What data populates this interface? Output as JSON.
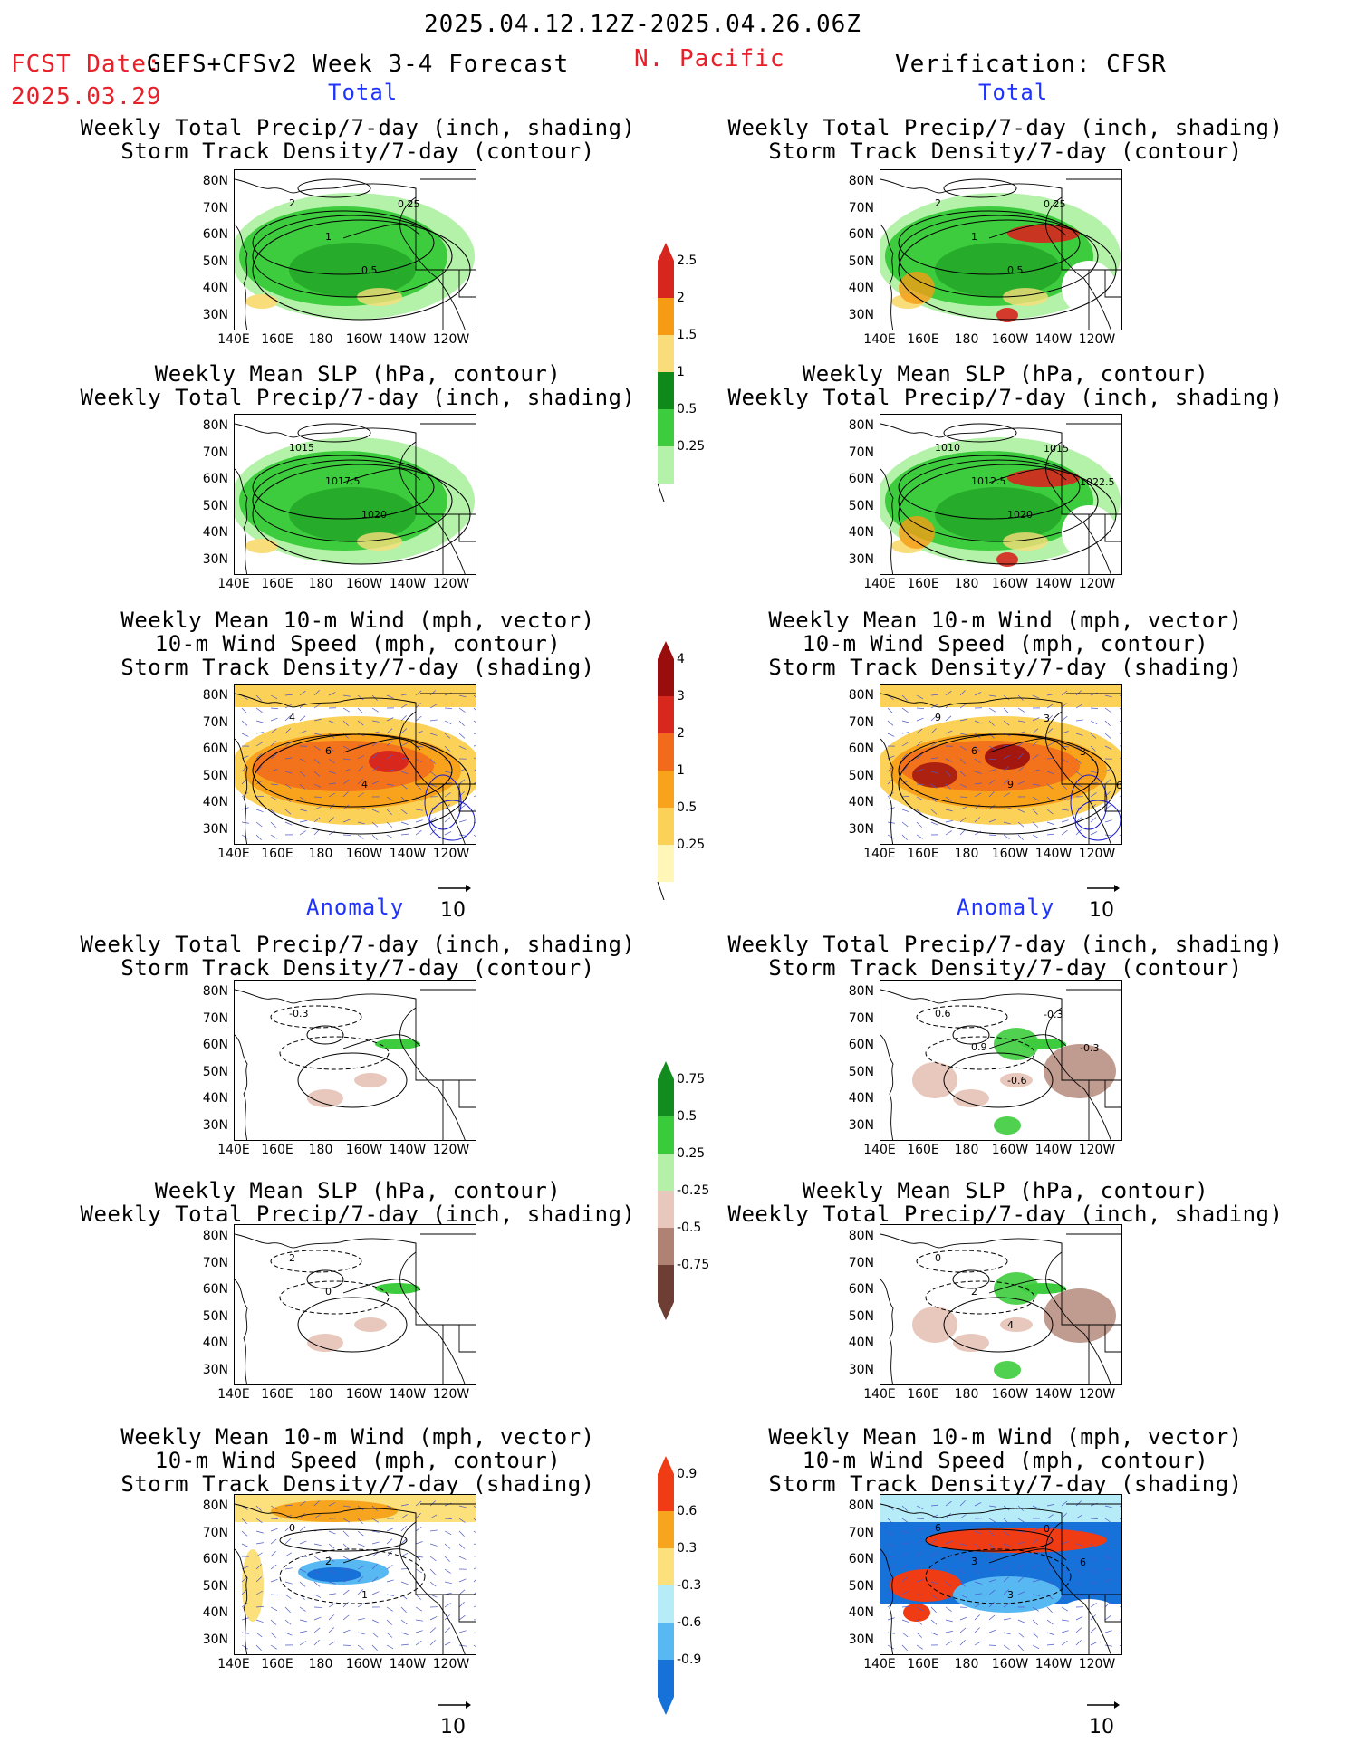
{
  "header": {
    "period": "2025.04.12.12Z-2025.04.26.06Z",
    "fcst_label": "FCST Date:",
    "model": "GEFS+CFSv2 Week 3-4 Forecast",
    "fcst_date": "2025.03.29",
    "region": "N. Pacific",
    "verification": "Verification: CFSR"
  },
  "sections": {
    "total_left": "Total",
    "total_right": "Total",
    "anomaly_left": "Anomaly",
    "anomaly_right": "Anomaly"
  },
  "titles": {
    "precip_track": [
      "Weekly Total Precip/7-day (inch, shading)",
      "Storm Track Density/7-day (contour)"
    ],
    "slp_precip": [
      "Weekly Mean SLP (hPa, contour)",
      "Weekly Total Precip/7-day (inch, shading)"
    ],
    "wind_track": [
      "Weekly Mean 10-m Wind (mph, vector)",
      "10-m Wind Speed (mph, contour)",
      "Storm Track Density/7-day (shading)"
    ]
  },
  "axes": {
    "lat": [
      "80N",
      "70N",
      "60N",
      "50N",
      "40N",
      "30N"
    ],
    "lon": [
      "140E",
      "160E",
      "180",
      "160W",
      "140W",
      "120W"
    ]
  },
  "vector_ref": "10",
  "colorbars": {
    "precip_total": {
      "labels": [
        "2.5",
        "2",
        "1.5",
        "1",
        "0.5",
        "0.25"
      ],
      "colors": [
        "#d7261e",
        "#f59c14",
        "#f9dd7a",
        "#0f8a1a",
        "#3dcc3d",
        "#b3f2a8"
      ]
    },
    "track_total": {
      "labels": [
        "4",
        "3",
        "2",
        "1",
        "0.5",
        "0.25"
      ],
      "colors": [
        "#9a0d0d",
        "#d8281d",
        "#f26a1c",
        "#f9a31c",
        "#fcd157",
        "#fff6b8"
      ]
    },
    "precip_anom": {
      "labels": [
        "0.75",
        "0.5",
        "0.25",
        "-0.25",
        "-0.5",
        "-0.75"
      ],
      "colors": [
        "#138c1f",
        "#3acb3a",
        "#b4f0a8",
        "#e8c8bc",
        "#b08274",
        "#6e3e34"
      ]
    },
    "track_anom": {
      "labels": [
        "0.9",
        "0.6",
        "0.3",
        "-0.3",
        "-0.6",
        "-0.9"
      ],
      "colors": [
        "#f03c14",
        "#f7a51e",
        "#fbe07b",
        "#b6ecf7",
        "#58b8f2",
        "#1671d8"
      ]
    }
  },
  "contour_labels": {
    "p1l": [
      "2",
      "1",
      "0.5",
      "0.25"
    ],
    "p1r": [
      "2",
      "1",
      "0.5",
      "0.25"
    ],
    "p2l": [
      "1015",
      "1017.5",
      "1020"
    ],
    "p2r": [
      "1010",
      "1012.5",
      "1020",
      "1015",
      "1022.5"
    ],
    "p3l": [
      "4",
      "6",
      "4"
    ],
    "p3r": [
      "9",
      "6",
      "9",
      "3",
      "3",
      "6"
    ],
    "p4l": [
      "-0.3"
    ],
    "p4r": [
      "0.6",
      "0.9",
      "-0.6",
      "-0.3",
      "-0.3"
    ],
    "p5l": [
      "2",
      "0"
    ],
    "p5r": [
      "0",
      "2",
      "4"
    ],
    "p6l": [
      "0",
      "2",
      "1"
    ],
    "p6r": [
      "6",
      "3",
      "3",
      "0",
      "6"
    ]
  }
}
